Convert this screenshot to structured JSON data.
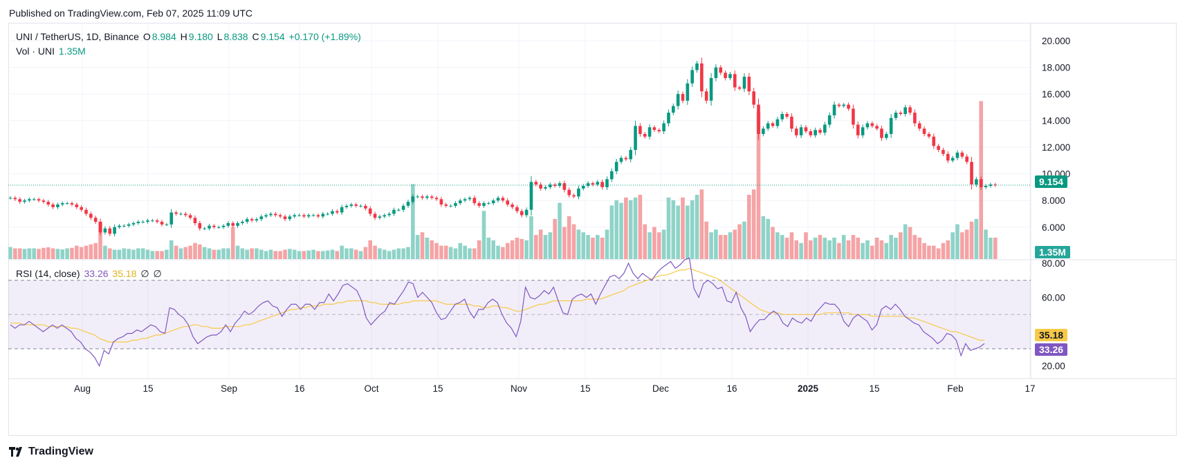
{
  "header": {
    "published": "Published on TradingView.com, Feb 07, 2025 11:09 UTC"
  },
  "legend": {
    "symbol": "UNI / TetherUS, 1D, Binance",
    "o_label": "O",
    "o_value": "8.984",
    "h_label": "H",
    "h_value": "9.180",
    "l_label": "L",
    "l_value": "8.838",
    "c_label": "C",
    "c_value": "9.154",
    "change": "+0.170 (+1.89%)",
    "vol_label": "Vol · UNI",
    "vol_value": "1.35M",
    "rsi_label": "RSI (14, close)",
    "rsi_value": "33.26",
    "rsi_ma_value": "35.18",
    "rsi_extra1": "∅",
    "rsi_extra2": "∅"
  },
  "badges": {
    "price": "9.154",
    "volume": "1.35M",
    "rsi_ma": "35.18",
    "rsi": "33.26"
  },
  "footer": {
    "brand": "TradingView",
    "logo_icon": "tradingview-logo-icon"
  },
  "colors": {
    "up": "#089981",
    "down": "#f23645",
    "rsi": "#7e57c2",
    "rsi_ma": "#f7c948",
    "vol_up": "#8fd3c8",
    "vol_down": "#f5a3a5"
  },
  "chart_data": [
    {
      "type": "candlestick",
      "title": "UNI / TetherUS, 1D, Binance",
      "x_ticks": [
        "Aug",
        "15",
        "Sep",
        "16",
        "Oct",
        "15",
        "Nov",
        "15",
        "Dec",
        "16",
        "2025",
        "15",
        "Feb",
        "17"
      ],
      "y_ticks": [
        "20.000",
        "18.000",
        "16.000",
        "14.000",
        "12.000",
        "10.000",
        "8.000",
        "6.000"
      ],
      "ylim": [
        3.6,
        21.3
      ],
      "last_close": 9.154,
      "closes": [
        8.2,
        8.1,
        7.9,
        8.0,
        8.1,
        8.1,
        8.0,
        7.9,
        7.7,
        7.5,
        7.7,
        7.8,
        7.8,
        7.7,
        7.5,
        7.3,
        7.0,
        6.7,
        6.4,
        5.6,
        5.9,
        5.5,
        6.0,
        6.1,
        6.1,
        6.2,
        6.3,
        6.4,
        6.4,
        6.5,
        6.5,
        6.4,
        6.2,
        6.2,
        7.1,
        7.0,
        7.0,
        6.9,
        6.7,
        6.3,
        5.9,
        5.9,
        6.1,
        6.0,
        6.0,
        6.1,
        6.3,
        6.1,
        6.3,
        6.4,
        6.6,
        6.5,
        6.6,
        6.8,
        6.9,
        7.0,
        6.9,
        6.8,
        6.6,
        6.8,
        6.9,
        6.9,
        6.8,
        6.9,
        6.9,
        6.8,
        7.0,
        7.0,
        7.2,
        7.1,
        7.5,
        7.6,
        7.7,
        7.6,
        7.6,
        7.4,
        7.0,
        6.7,
        6.8,
        6.9,
        7.0,
        7.3,
        7.3,
        7.6,
        7.9,
        8.3,
        8.3,
        8.2,
        8.3,
        8.2,
        8.1,
        7.7,
        7.6,
        7.6,
        7.8,
        8.0,
        8.1,
        8.2,
        7.8,
        7.6,
        7.8,
        7.8,
        8.0,
        8.2,
        8.0,
        7.7,
        7.5,
        7.2,
        6.9,
        7.3,
        9.4,
        9.2,
        8.9,
        9.0,
        9.2,
        9.1,
        9.3,
        8.8,
        8.4,
        8.3,
        8.9,
        9.1,
        9.3,
        9.2,
        9.4,
        9.0,
        9.6,
        10.2,
        10.9,
        11.2,
        11.1,
        11.8,
        13.6,
        13.0,
        12.8,
        13.5,
        13.3,
        13.2,
        13.8,
        14.6,
        15.1,
        16.0,
        15.5,
        16.8,
        17.8,
        18.3,
        16.2,
        15.5,
        17.2,
        18.0,
        17.6,
        17.2,
        17.5,
        16.5,
        16.4,
        17.3,
        16.2,
        15.2,
        13.0,
        13.4,
        13.8,
        13.6,
        14.1,
        14.5,
        14.3,
        13.4,
        12.9,
        13.5,
        13.2,
        12.9,
        13.3,
        13.1,
        13.7,
        14.4,
        15.2,
        15.1,
        15.2,
        14.9,
        13.7,
        12.9,
        13.5,
        13.8,
        13.6,
        13.4,
        12.7,
        13.0,
        14.2,
        14.6,
        14.5,
        15.0,
        14.6,
        13.8,
        13.4,
        13.0,
        12.8,
        12.1,
        11.8,
        11.5,
        11.0,
        11.2,
        11.6,
        11.3,
        10.9,
        9.2,
        9.6,
        9.0,
        9.1,
        9.2,
        9.15
      ],
      "volume_ylim": [
        0,
        8.8
      ],
      "volumes": [
        0.45,
        0.4,
        0.4,
        0.38,
        0.4,
        0.4,
        0.38,
        0.42,
        0.44,
        0.4,
        0.38,
        0.36,
        0.4,
        0.42,
        0.5,
        0.45,
        0.5,
        0.55,
        0.6,
        1.4,
        0.5,
        0.4,
        0.35,
        0.35,
        0.4,
        0.38,
        0.35,
        0.4,
        0.4,
        0.35,
        0.3,
        0.3,
        0.3,
        0.35,
        0.7,
        0.5,
        0.4,
        0.45,
        0.5,
        0.6,
        0.55,
        0.45,
        0.4,
        0.35,
        0.35,
        0.4,
        0.4,
        1.2,
        0.5,
        0.4,
        0.35,
        0.4,
        0.4,
        0.35,
        0.3,
        0.35,
        0.3,
        0.3,
        0.35,
        0.38,
        0.35,
        0.3,
        0.3,
        0.32,
        0.35,
        0.3,
        0.3,
        0.32,
        0.35,
        0.3,
        0.5,
        0.4,
        0.4,
        0.35,
        0.3,
        0.45,
        0.7,
        0.5,
        0.4,
        0.35,
        0.3,
        0.35,
        0.4,
        0.4,
        0.45,
        2.8,
        0.9,
        1.0,
        0.8,
        0.7,
        0.6,
        0.5,
        0.5,
        0.45,
        0.4,
        0.6,
        0.5,
        0.4,
        0.4,
        0.7,
        1.8,
        0.8,
        0.7,
        0.5,
        0.45,
        0.6,
        0.7,
        0.8,
        0.75,
        0.7,
        1.6,
        0.9,
        1.1,
        0.9,
        1.0,
        1.5,
        2.1,
        1.2,
        1.6,
        1.3,
        1.1,
        1.0,
        0.9,
        0.8,
        0.9,
        0.8,
        1.1,
        2.0,
        2.2,
        2.1,
        2.3,
        2.2,
        2.3,
        2.4,
        1.3,
        1.0,
        1.2,
        1.0,
        1.1,
        2.3,
        2.2,
        2.0,
        2.3,
        2.0,
        2.2,
        2.4,
        2.6,
        1.4,
        1.0,
        1.1,
        0.9,
        0.9,
        1.0,
        1.1,
        1.3,
        1.4,
        2.4,
        2.6,
        5.5,
        1.6,
        1.5,
        1.2,
        1.0,
        0.9,
        0.8,
        1.0,
        0.7,
        0.6,
        1.0,
        0.7,
        0.8,
        0.9,
        0.8,
        0.7,
        0.8,
        0.6,
        0.9,
        0.7,
        0.9,
        0.8,
        0.6,
        0.7,
        0.5,
        0.8,
        0.7,
        0.6,
        0.9,
        0.8,
        1.0,
        1.3,
        1.2,
        0.9,
        0.8,
        0.6,
        0.5,
        0.5,
        0.4,
        0.6,
        0.7,
        1.0,
        1.3,
        1.0,
        1.1,
        1.4,
        1.5,
        5.9,
        1.1,
        0.8,
        0.8,
        0.5,
        0.5,
        0.4
      ]
    },
    {
      "type": "line",
      "title": "RSI (14, close)",
      "y_ticks": [
        "80.00",
        "60.00",
        "20.00"
      ],
      "ylim": [
        13,
        82
      ],
      "bands": {
        "upper": 70,
        "middle": 50,
        "lower": 30
      },
      "series": [
        {
          "name": "RSI",
          "values": [
            44,
            42,
            44,
            44,
            46,
            44,
            42,
            40,
            42,
            44,
            42,
            44,
            42,
            40,
            36,
            34,
            30,
            28,
            25,
            20,
            29,
            27,
            34,
            36,
            37,
            39,
            39,
            41,
            40,
            42,
            44,
            43,
            40,
            39,
            54,
            53,
            50,
            48,
            44,
            37,
            33,
            35,
            37,
            38,
            38,
            40,
            44,
            40,
            45,
            48,
            52,
            50,
            52,
            55,
            57,
            58,
            55,
            54,
            49,
            53,
            56,
            56,
            53,
            56,
            56,
            53,
            57,
            57,
            62,
            58,
            62,
            67,
            68,
            66,
            64,
            58,
            48,
            44,
            47,
            50,
            52,
            57,
            56,
            60,
            64,
            69,
            68,
            60,
            63,
            60,
            57,
            51,
            47,
            48,
            52,
            56,
            57,
            59,
            52,
            48,
            53,
            53,
            57,
            59,
            57,
            50,
            45,
            42,
            37,
            46,
            66,
            60,
            59,
            61,
            64,
            62,
            66,
            58,
            51,
            50,
            59,
            61,
            62,
            60,
            62,
            56,
            62,
            67,
            72,
            73,
            71,
            74,
            80,
            74,
            71,
            74,
            72,
            70,
            74,
            77,
            79,
            81,
            77,
            79,
            82,
            83,
            65,
            60,
            68,
            70,
            68,
            65,
            66,
            58,
            57,
            63,
            54,
            49,
            40,
            44,
            47,
            47,
            50,
            52,
            50,
            45,
            43,
            48,
            46,
            45,
            48,
            46,
            51,
            54,
            57,
            56,
            56,
            53,
            46,
            43,
            48,
            50,
            48,
            46,
            41,
            44,
            53,
            55,
            53,
            56,
            53,
            49,
            47,
            45,
            44,
            40,
            38,
            36,
            33,
            35,
            39,
            38,
            35,
            26,
            33,
            29,
            30,
            31,
            33
          ]
        },
        {
          "name": "RSI-based MA",
          "values": [
            45,
            45,
            45,
            44,
            44,
            44,
            44,
            44,
            43,
            43,
            43,
            43,
            43,
            42,
            42,
            41,
            40,
            39,
            38,
            36,
            35,
            34,
            34,
            34,
            34,
            34,
            35,
            35,
            36,
            36,
            37,
            38,
            38,
            39,
            40,
            41,
            42,
            43,
            43,
            44,
            44,
            43,
            43,
            42,
            42,
            42,
            43,
            43,
            43,
            43,
            44,
            44,
            45,
            46,
            47,
            48,
            49,
            50,
            51,
            52,
            53,
            53,
            54,
            54,
            55,
            55,
            55,
            56,
            56,
            56,
            57,
            57,
            58,
            58,
            58,
            58,
            58,
            57,
            57,
            56,
            56,
            56,
            56,
            56,
            57,
            57,
            58,
            58,
            58,
            58,
            58,
            58,
            57,
            56,
            56,
            56,
            56,
            56,
            56,
            55,
            55,
            54,
            54,
            55,
            55,
            54,
            54,
            53,
            52,
            52,
            53,
            54,
            55,
            56,
            56,
            57,
            58,
            58,
            58,
            58,
            58,
            58,
            58,
            59,
            59,
            59,
            59,
            60,
            61,
            62,
            63,
            64,
            66,
            67,
            68,
            69,
            70,
            71,
            72,
            73,
            73,
            74,
            75,
            76,
            76,
            77,
            76,
            75,
            74,
            73,
            72,
            71,
            69,
            67,
            65,
            63,
            61,
            59,
            57,
            55,
            53,
            52,
            51,
            51,
            51,
            50,
            50,
            50,
            50,
            50,
            50,
            50,
            50,
            50,
            51,
            51,
            51,
            51,
            51,
            51,
            50,
            50,
            50,
            50,
            49,
            49,
            49,
            49,
            49,
            49,
            49,
            49,
            48,
            48,
            47,
            46,
            45,
            44,
            43,
            42,
            41,
            40,
            40,
            39,
            38,
            37,
            36,
            35,
            35
          ]
        }
      ]
    }
  ]
}
